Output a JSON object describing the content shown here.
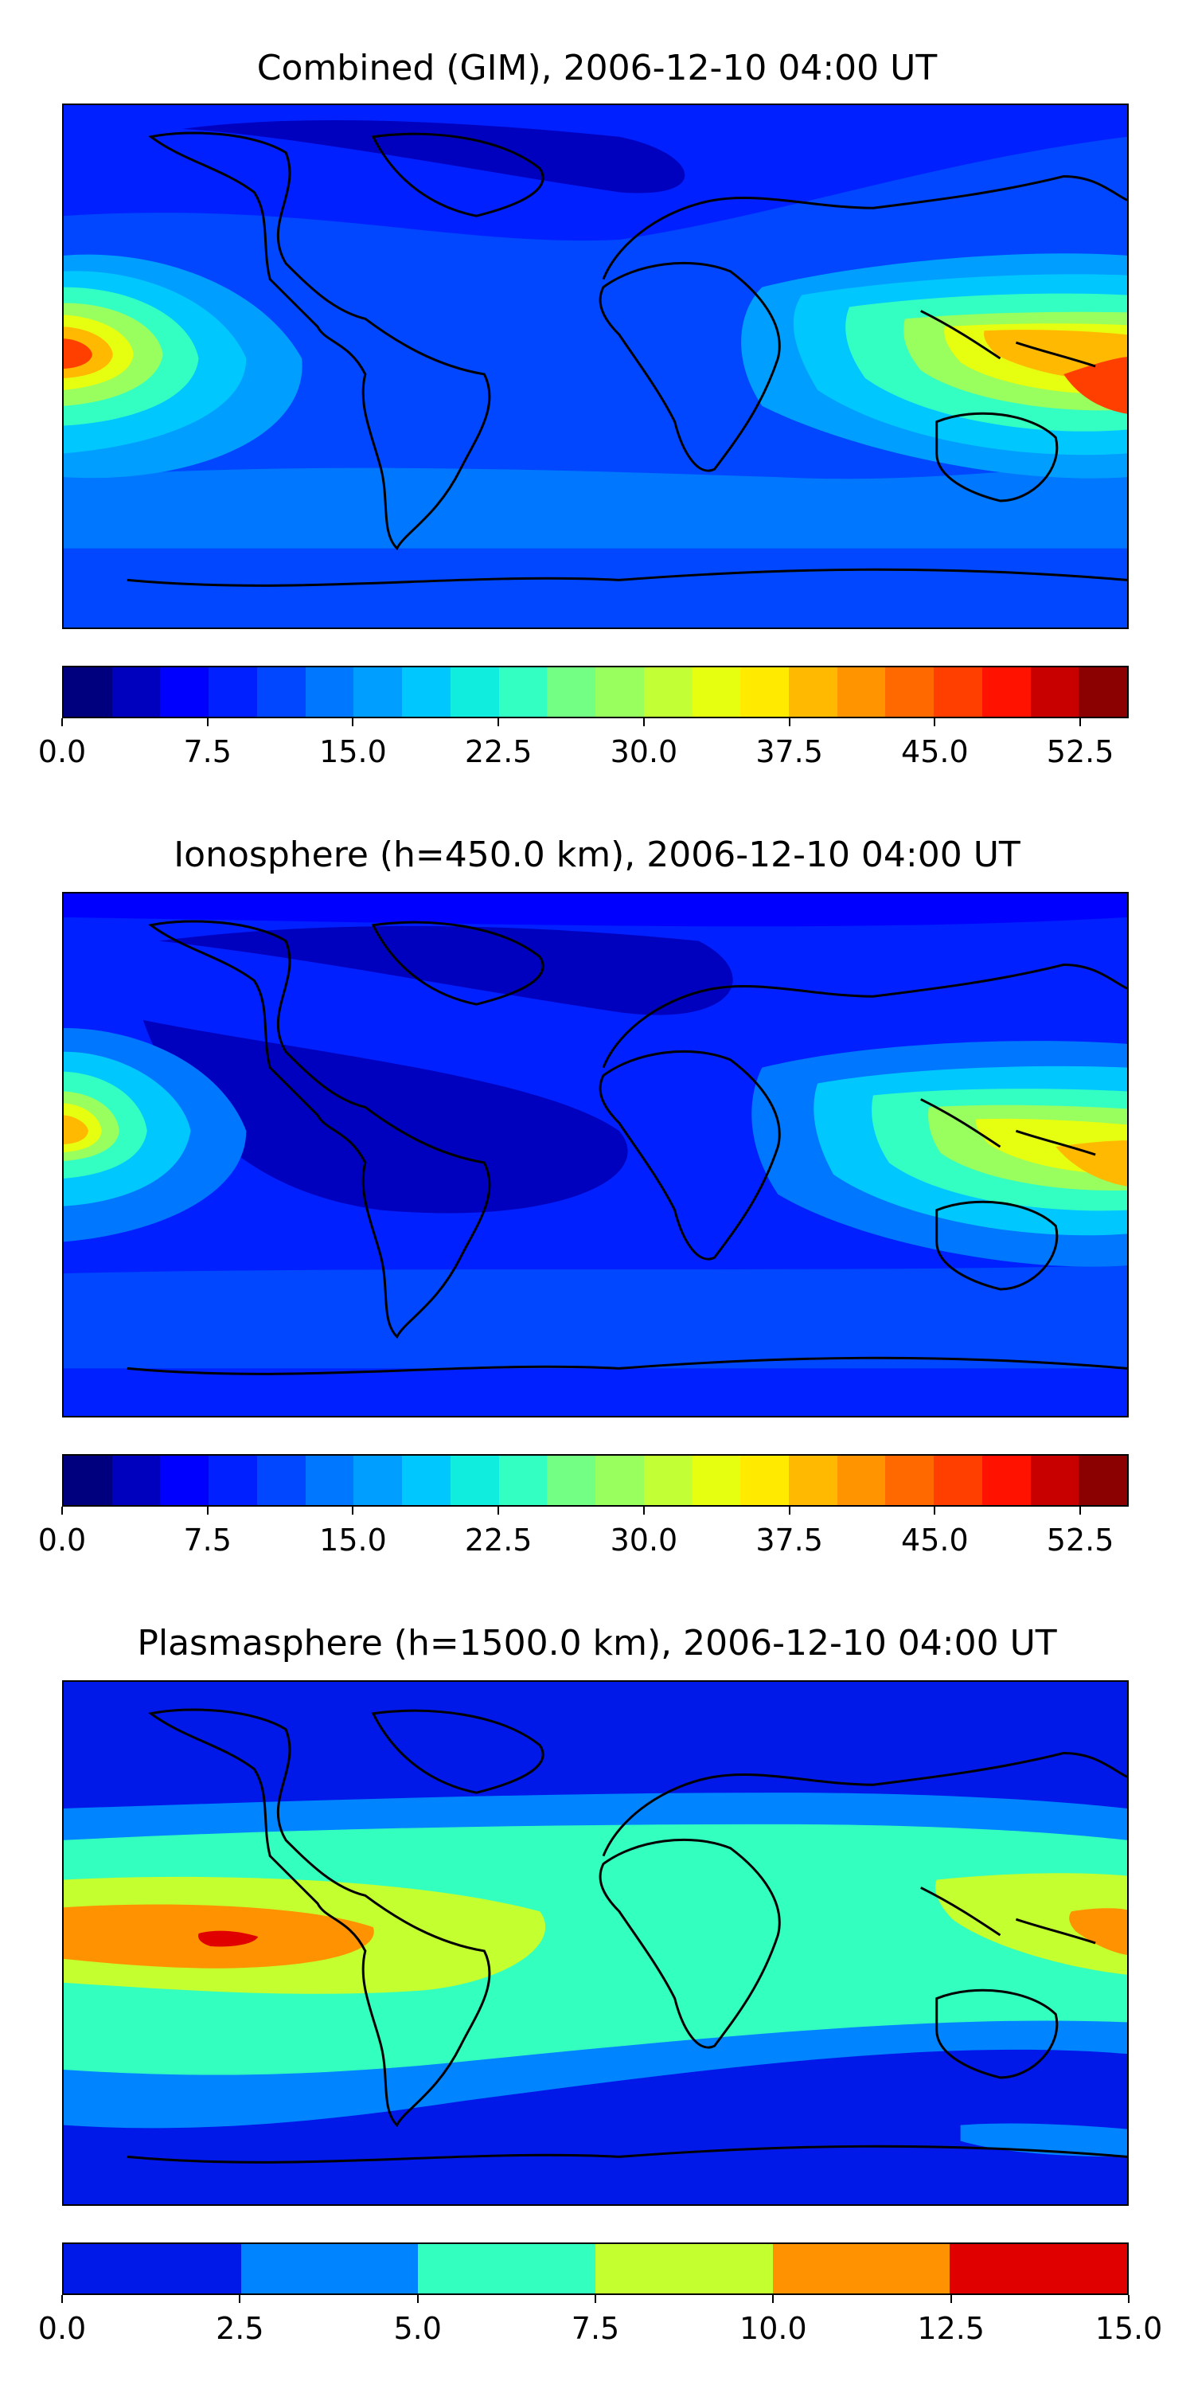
{
  "panels": [
    {
      "title": "Combined (GIM), 2006-12-10 04:00 UT",
      "colorbar": {
        "colors": [
          "#00007f",
          "#0000bf",
          "#0000ff",
          "#0020ff",
          "#0047ff",
          "#0077ff",
          "#009fff",
          "#00c8ff",
          "#10eddf",
          "#34ffc2",
          "#72ff84",
          "#98ff5e",
          "#c2ff34",
          "#e6ff10",
          "#ffea00",
          "#ffb900",
          "#ff9400",
          "#ff6900",
          "#ff3f00",
          "#ff1300",
          "#c80000",
          "#8b0000"
        ],
        "ticks": [
          "0.0",
          "7.5",
          "15.0",
          "22.5",
          "30.0",
          "37.5",
          "45.0",
          "52.5"
        ],
        "tick_values": [
          0,
          7.5,
          15,
          22.5,
          30,
          37.5,
          45,
          52.5
        ],
        "vmin": 0,
        "vmax": 55
      }
    },
    {
      "title": "Ionosphere  (h=450.0 km), 2006-12-10 04:00 UT",
      "colorbar": {
        "colors": [
          "#00007f",
          "#0000bf",
          "#0000ff",
          "#0020ff",
          "#0047ff",
          "#0077ff",
          "#009fff",
          "#00c8ff",
          "#10eddf",
          "#34ffc2",
          "#72ff84",
          "#98ff5e",
          "#c2ff34",
          "#e6ff10",
          "#ffea00",
          "#ffb900",
          "#ff9400",
          "#ff6900",
          "#ff3f00",
          "#ff1300",
          "#c80000",
          "#8b0000"
        ],
        "ticks": [
          "0.0",
          "7.5",
          "15.0",
          "22.5",
          "30.0",
          "37.5",
          "45.0",
          "52.5"
        ],
        "tick_values": [
          0,
          7.5,
          15,
          22.5,
          30,
          37.5,
          45,
          52.5
        ],
        "vmin": 0,
        "vmax": 55
      }
    },
    {
      "title": "Plasmasphere (h=1500.0 km), 2006-12-10 04:00 UT",
      "colorbar": {
        "colors": [
          "#0018e8",
          "#0084ff",
          "#33ffbf",
          "#c4ff2f",
          "#ff9200",
          "#e00000"
        ],
        "ticks": [
          "0.0",
          "2.5",
          "5.0",
          "7.5",
          "10.0",
          "12.5",
          "15.0"
        ],
        "tick_values": [
          0,
          2.5,
          5,
          7.5,
          10,
          12.5,
          15
        ],
        "vmin": 0,
        "vmax": 15
      }
    }
  ],
  "map_colors": {
    "combined": {
      "base": "#0047ff",
      "dark": "#0020ff",
      "darker": "#0000bf",
      "mid": "#0077ff",
      "light": "#009fff",
      "cyan": "#00c8ff",
      "aqua": "#34ffc2",
      "green": "#98ff5e",
      "yellow": "#e6ff10",
      "orange": "#ffb900",
      "red": "#ff3f00",
      "deepred": "#c80000"
    },
    "ionosphere": {
      "base": "#0020ff",
      "dark": "#0000ff",
      "darker": "#0000bf",
      "mid": "#0047ff",
      "light": "#0077ff",
      "cyan": "#00c8ff",
      "aqua": "#34ffc2",
      "green": "#98ff5e",
      "yellow": "#e6ff10",
      "orange": "#ffb900",
      "red": "#ff3f00"
    },
    "plasmasphere": {
      "band0": "#0018e8",
      "band1": "#0084ff",
      "band2": "#33ffbf",
      "band3": "#c4ff2f",
      "band4": "#ff9200",
      "band5": "#e00000"
    }
  }
}
